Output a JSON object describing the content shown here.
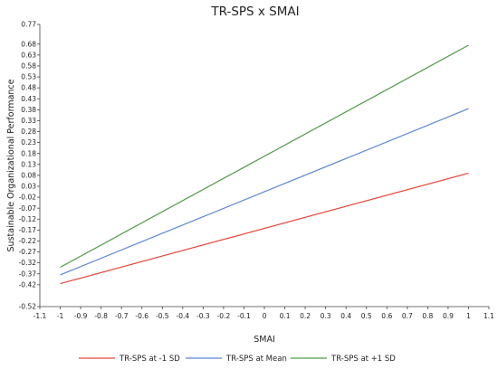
{
  "chart_data": {
    "type": "line",
    "title": "TR-SPS x SMAI",
    "xlabel": "SMAI",
    "ylabel": "Sustainable Organizational Performance",
    "xlim": [
      -1.1,
      1.1
    ],
    "ylim": [
      -0.52,
      0.77
    ],
    "xticks": [
      "-1.1",
      "-1",
      "-0.9",
      "-0.8",
      "-0.7",
      "-0.6",
      "-0.5",
      "-0.4",
      "-0.3",
      "-0.2",
      "-0.1",
      "0",
      "0.1",
      "0.2",
      "0.3",
      "0.4",
      "0.5",
      "0.6",
      "0.7",
      "0.8",
      "0.9",
      "1",
      "1.1"
    ],
    "yticks": [
      "0.77",
      "0.68",
      "0.63",
      "0.58",
      "0.53",
      "0.48",
      "0.43",
      "0.38",
      "0.33",
      "0.28",
      "0.23",
      "0.18",
      "0.13",
      "0.08",
      "0.03",
      "-0.02",
      "-0.07",
      "-0.12",
      "-0.17",
      "-0.22",
      "-0.27",
      "-0.32",
      "-0.37",
      "-0.42",
      "-0.52"
    ],
    "grid": false,
    "legend_position": "bottom",
    "series": [
      {
        "name": "TR-SPS at -1 SD",
        "color": "#e8443a",
        "x": [
          -1,
          1
        ],
        "y": [
          -0.415,
          0.09
        ]
      },
      {
        "name": "TR-SPS at Mean",
        "color": "#5b86d6",
        "x": [
          -1,
          1
        ],
        "y": [
          -0.375,
          0.385
        ]
      },
      {
        "name": "TR-SPS at +1 SD",
        "color": "#4e9a47",
        "x": [
          -1,
          1
        ],
        "y": [
          -0.34,
          0.675
        ]
      }
    ]
  }
}
